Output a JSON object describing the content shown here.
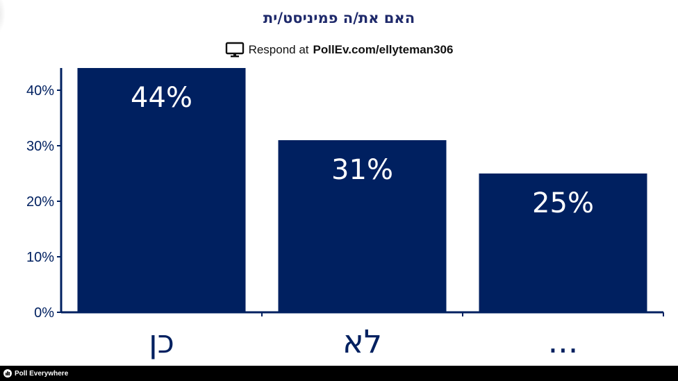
{
  "header": {
    "title": "האם את/ה פמיניסט/ית",
    "respond_prefix": "Respond at",
    "respond_url": "PollEv.com/ellyteman306",
    "respond_icon": "monitor-icon"
  },
  "footer": {
    "brand": "Poll Everywhere",
    "logo_icon": "poll-everywhere-logo-icon"
  },
  "colors": {
    "bar": "#002060",
    "axis": "#002060",
    "title": "#1f2a6b",
    "bar_label": "#ffffff",
    "footer_bg": "#000000"
  },
  "chart_data": {
    "type": "bar",
    "title": "האם את/ה פמיניסט/ית",
    "categories": [
      "כן",
      "לא",
      "..."
    ],
    "values": [
      44,
      31,
      25
    ],
    "value_labels": [
      "44%",
      "31%",
      "25%"
    ],
    "yticks": [
      "0%",
      "10%",
      "20%",
      "30%",
      "40%"
    ],
    "ytick_values": [
      0,
      10,
      20,
      30,
      40
    ],
    "ylim": [
      0,
      44
    ],
    "xlabel": "",
    "ylabel": "",
    "grid": false,
    "legend": "none"
  }
}
